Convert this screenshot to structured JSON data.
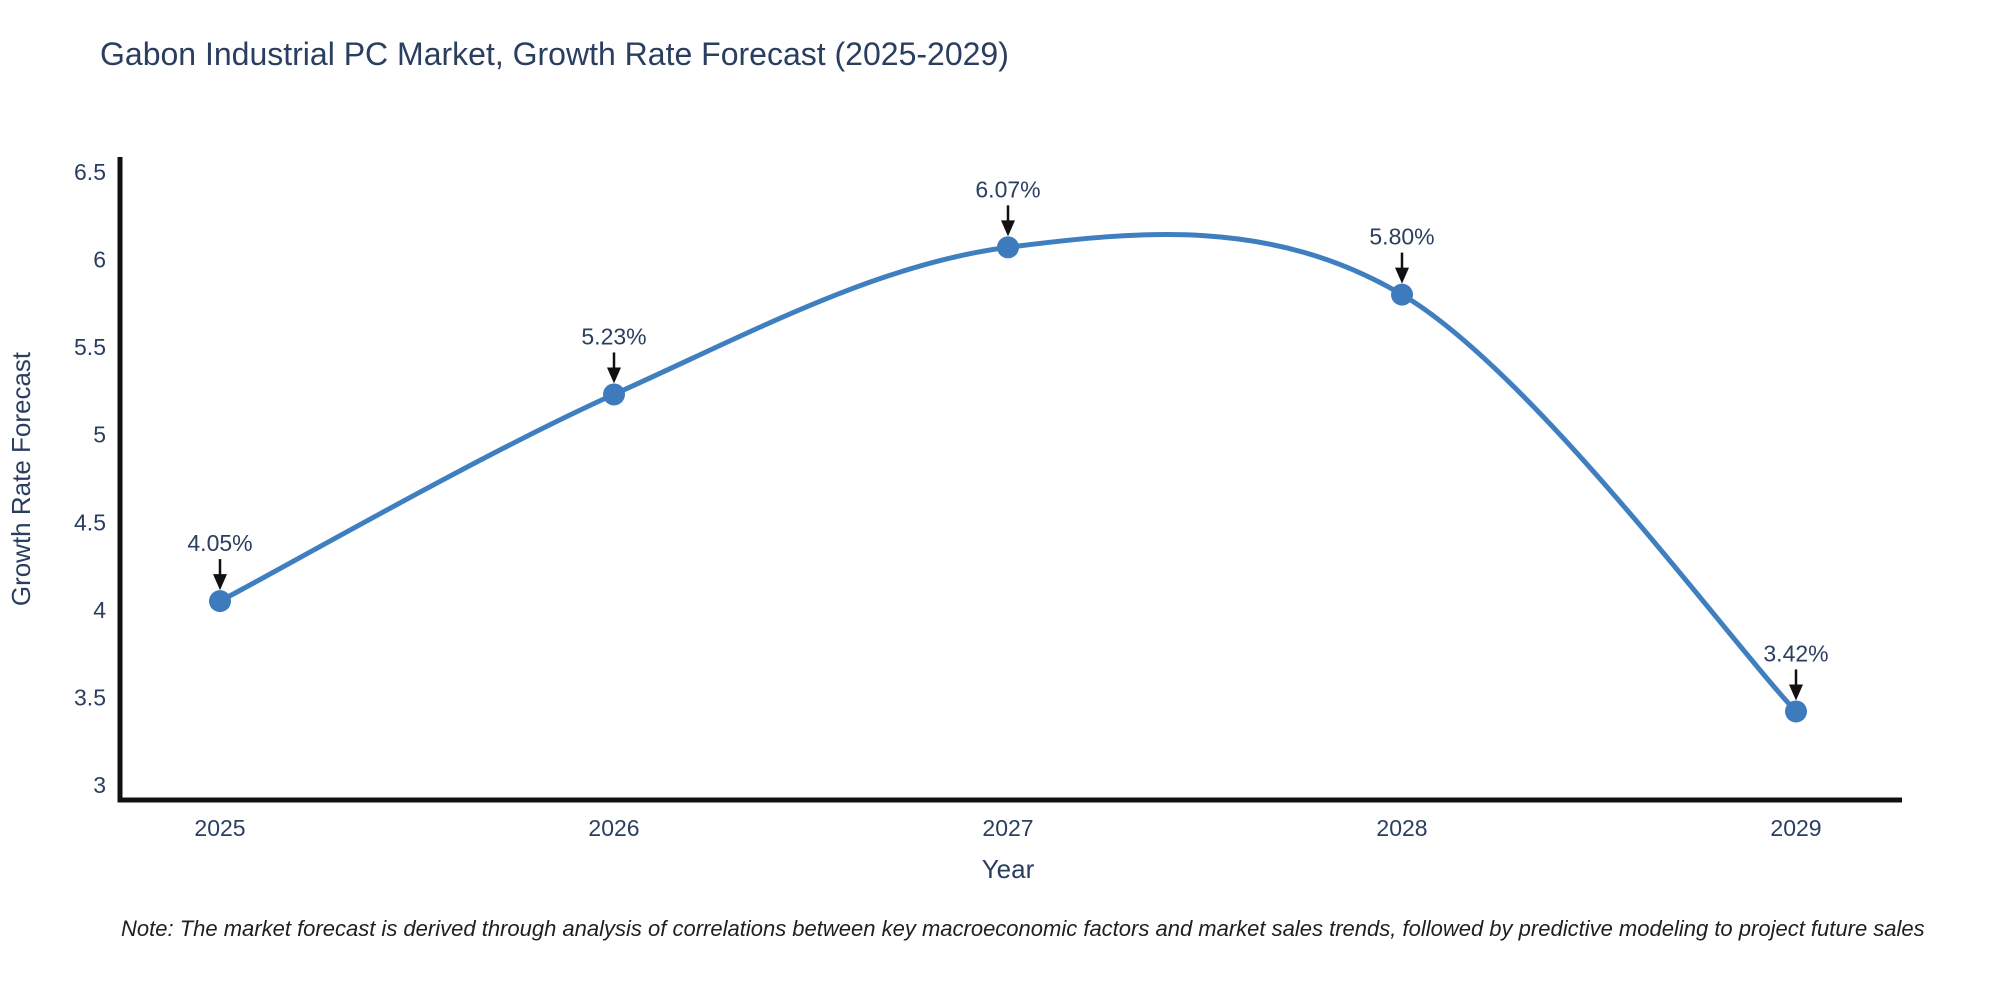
{
  "page": {
    "background": "#ffffff"
  },
  "chart_data": {
    "type": "line",
    "title": "Gabon Industrial PC Market, Growth Rate Forecast (2025-2029)",
    "xlabel": "Year",
    "ylabel": "Growth Rate Forecast",
    "x": [
      2025,
      2026,
      2027,
      2028,
      2029
    ],
    "y": [
      4.05,
      5.23,
      6.07,
      5.8,
      3.42
    ],
    "point_labels": [
      "4.05%",
      "5.23%",
      "6.07%",
      "5.80%",
      "3.42%"
    ],
    "x_tick_labels": [
      "2025",
      "2026",
      "2027",
      "2028",
      "2029"
    ],
    "y_tick_values": [
      3,
      3.5,
      4,
      4.5,
      5,
      5.5,
      6,
      6.5
    ],
    "y_tick_labels": [
      "3",
      "3.5",
      "4",
      "4.5",
      "5",
      "5.5",
      "6",
      "6.5"
    ],
    "ylim": [
      2.91,
      6.58
    ],
    "xlim": [
      2024.73,
      2029.27
    ],
    "line_shape": "spline",
    "grid": false,
    "legend_position": "none",
    "colors": {
      "line": "#3f7fbf",
      "marker": "#3d7bbd",
      "axis": "#111111",
      "text": "#2a3f5f",
      "annotation_arrow": "#111111"
    }
  },
  "note": {
    "text": "Note: The market forecast is derived through analysis of correlations between key macroeconomic factors and market sales trends, followed by predictive modeling to project future sales"
  }
}
